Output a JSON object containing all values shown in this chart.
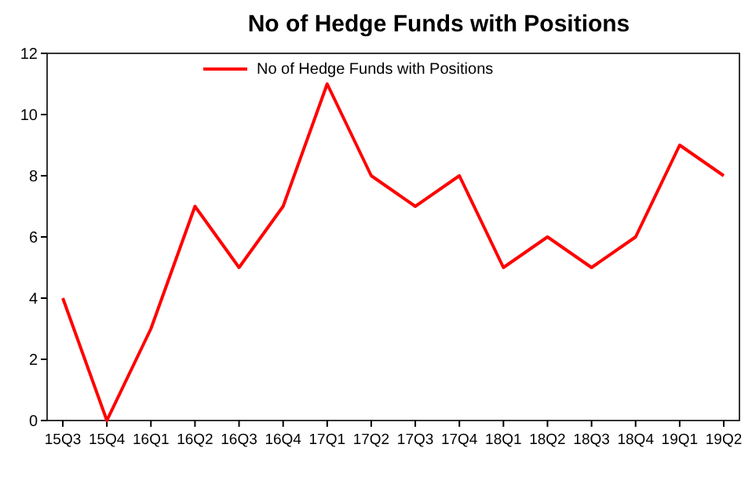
{
  "chart_data": {
    "type": "line",
    "title": "No of Hedge Funds with Positions",
    "categories": [
      "15Q3",
      "15Q4",
      "16Q1",
      "16Q2",
      "16Q3",
      "16Q4",
      "17Q1",
      "17Q2",
      "17Q3",
      "17Q4",
      "18Q1",
      "18Q2",
      "18Q3",
      "18Q4",
      "19Q1",
      "19Q2"
    ],
    "series": [
      {
        "name": "No of Hedge Funds with Positions",
        "color": "#ff0000",
        "values": [
          4,
          0,
          3,
          7,
          5,
          7,
          11,
          8,
          7,
          8,
          5,
          6,
          5,
          6,
          9,
          8
        ]
      }
    ],
    "ylim": [
      0,
      12
    ],
    "yticks": [
      0,
      2,
      4,
      6,
      8,
      10,
      12
    ],
    "legend": "top",
    "grid": false,
    "marker": "none",
    "line_style": "solid"
  }
}
